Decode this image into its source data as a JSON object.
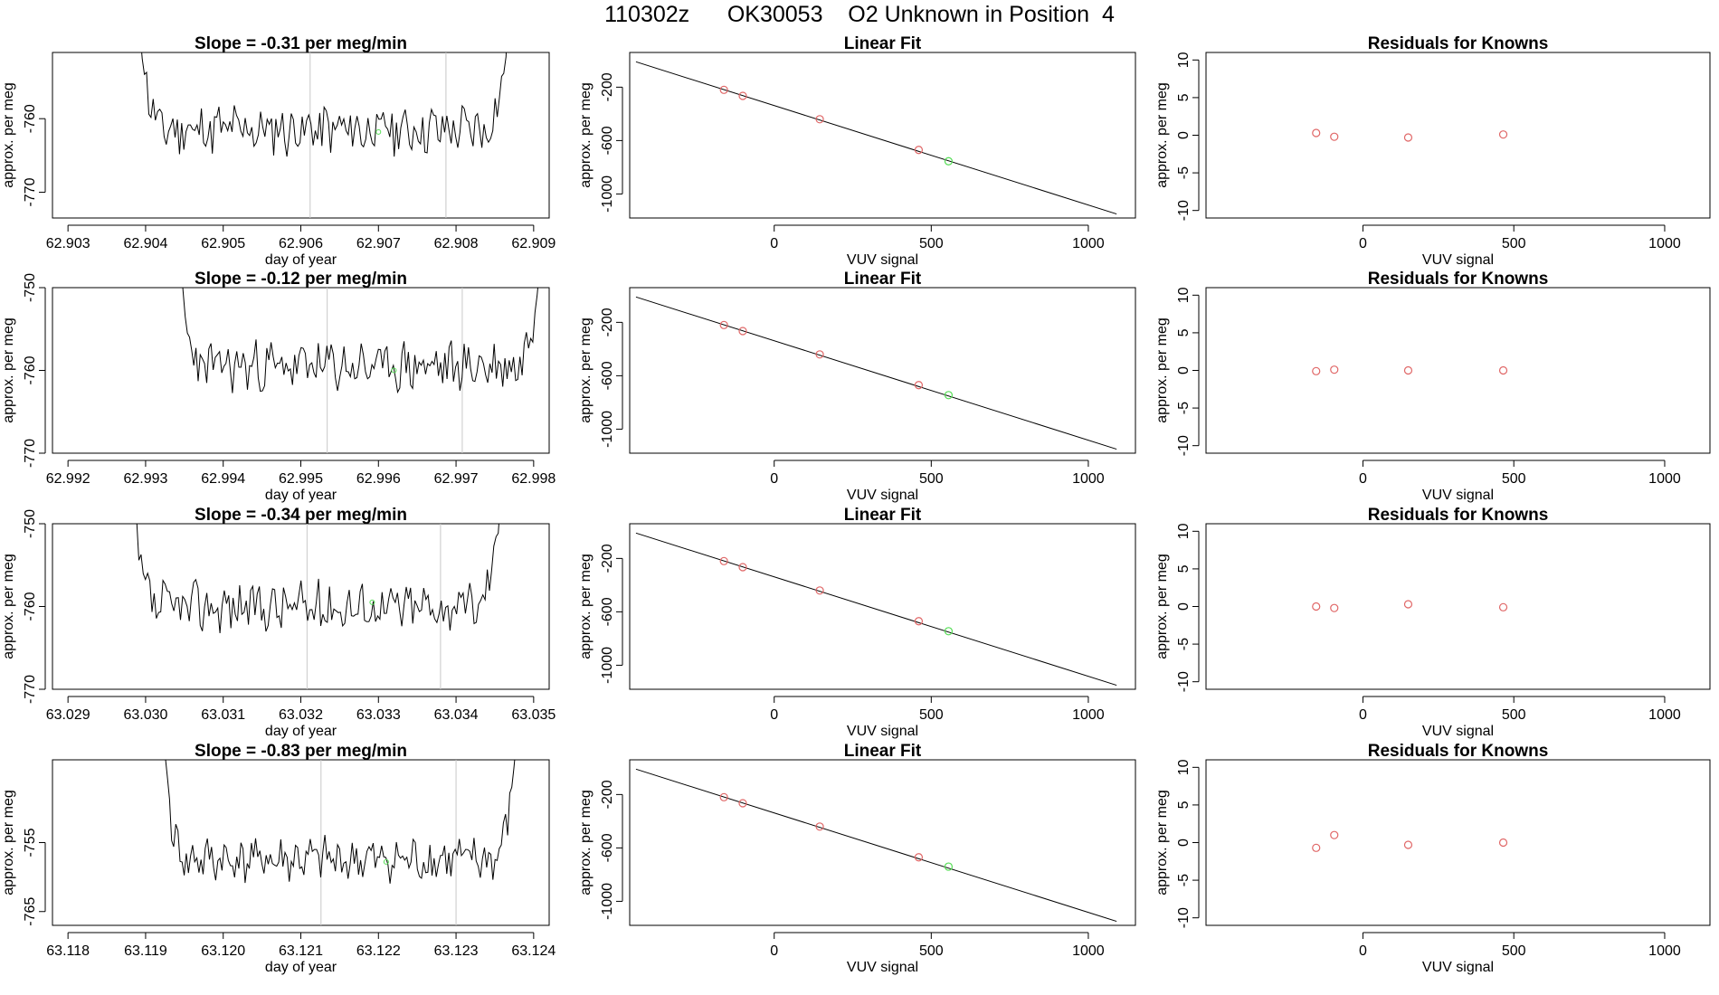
{
  "page": {
    "title": "110302z      OK30053    O2 Unknown in Position  4"
  },
  "common": {
    "xlabel_time": "day of year",
    "ylabel": "approx. per meg",
    "fit_title": "Linear Fit",
    "resid_title": "Residuals for Knowns",
    "xlabel_fit": "VUV signal",
    "colors": {
      "line": "#000000",
      "known": "#e06666",
      "unknown": "#55dd55",
      "vline": "#c8c8c8"
    }
  },
  "chart_data": [
    {
      "type": "line",
      "panel": "time",
      "row": 0,
      "title": "Slope =  -0.31  per meg/min",
      "xlabel": "day of year",
      "ylabel": "approx. per meg",
      "xlim": [
        62.9028,
        62.9092
      ],
      "ylim": [
        -773.5,
        -751
      ],
      "xticks": [
        62.903,
        62.904,
        62.905,
        62.906,
        62.907,
        62.908,
        62.909
      ],
      "xtick_labels": [
        "62.903",
        "62.904",
        "62.905",
        "62.906",
        "62.907",
        "62.908",
        "62.909"
      ],
      "yticks": [
        -760,
        -770
      ],
      "ytick_labels": [
        "-760",
        "-770"
      ],
      "series_range": [
        62.9039,
        62.9087
      ],
      "base": -761.5,
      "noise": 3.0,
      "seed": 11,
      "edge_top": -751,
      "vlines": [
        62.90612,
        62.90787
      ],
      "marker": {
        "x": 62.907,
        "y": -761.8
      }
    },
    {
      "type": "line",
      "panel": "time",
      "row": 1,
      "title": "Slope =  -0.12  per meg/min",
      "xlabel": "day of year",
      "ylabel": "approx. per meg",
      "xlim": [
        62.9918,
        62.9982
      ],
      "ylim": [
        -770,
        -750
      ],
      "xticks": [
        62.992,
        62.993,
        62.994,
        62.995,
        62.996,
        62.997,
        62.998
      ],
      "xtick_labels": [
        "62.992",
        "62.993",
        "62.994",
        "62.995",
        "62.996",
        "62.997",
        "62.998"
      ],
      "yticks": [
        -750,
        -760,
        -770
      ],
      "ytick_labels": [
        "-750",
        "-760",
        "-770"
      ],
      "series_range": [
        62.9934,
        62.9981
      ],
      "base": -759.5,
      "noise": 2.6,
      "seed": 23,
      "edge_top": -750,
      "vlines": [
        62.99534,
        62.99708
      ],
      "marker": {
        "x": 62.9962,
        "y": -760.0
      }
    },
    {
      "type": "line",
      "panel": "time",
      "row": 2,
      "title": "Slope =  -0.34  per meg/min",
      "xlabel": "day of year",
      "ylabel": "approx. per meg",
      "xlim": [
        63.0288,
        63.0352
      ],
      "ylim": [
        -770,
        -750
      ],
      "xticks": [
        63.029,
        63.03,
        63.031,
        63.032,
        63.033,
        63.034,
        63.035
      ],
      "xtick_labels": [
        "63.029",
        "63.030",
        "63.031",
        "63.032",
        "63.033",
        "63.034",
        "63.035"
      ],
      "yticks": [
        -750,
        -760,
        -770
      ],
      "ytick_labels": [
        "-750",
        "-760",
        "-770"
      ],
      "series_range": [
        63.0298,
        63.0346
      ],
      "base": -760.0,
      "noise": 2.6,
      "seed": 37,
      "edge_top": -750,
      "vlines": [
        63.03208,
        63.0338
      ],
      "marker": {
        "x": 63.03292,
        "y": -759.5
      }
    },
    {
      "type": "line",
      "panel": "time",
      "row": 3,
      "title": "Slope =  -0.83  per meg/min",
      "xlabel": "day of year",
      "ylabel": "approx. per meg",
      "xlim": [
        63.1178,
        63.1242
      ],
      "ylim": [
        -767,
        -743
      ],
      "xticks": [
        63.118,
        63.119,
        63.12,
        63.121,
        63.122,
        63.123,
        63.124
      ],
      "xtick_labels": [
        "63.118",
        "63.119",
        "63.120",
        "63.121",
        "63.122",
        "63.123",
        "63.124"
      ],
      "yticks": [
        -755,
        -765
      ],
      "ytick_labels": [
        "-755",
        "-765"
      ],
      "series_range": [
        63.1192,
        63.1238
      ],
      "base": -757.5,
      "noise": 2.8,
      "seed": 41,
      "edge_top": -743,
      "vlines": [
        63.12126,
        63.123
      ],
      "marker": {
        "x": 63.1221,
        "y": -757.8
      }
    },
    {
      "type": "scatter",
      "panel": "fit",
      "row": 0,
      "title": "Linear Fit",
      "xlabel": "VUV signal",
      "ylabel": "approx. per meg",
      "xlim": [
        -460,
        1150
      ],
      "ylim": [
        -1180,
        60
      ],
      "xticks": [
        0,
        500,
        1000
      ],
      "xtick_labels": [
        "0",
        "500",
        "1000"
      ],
      "yticks": [
        -200,
        -600,
        -1000
      ],
      "ytick_labels": [
        "-200",
        "-600",
        "-1000"
      ],
      "fit_line": {
        "x": [
          -440,
          1090
        ],
        "y": [
          -10,
          -1150
        ]
      },
      "known": {
        "x": [
          -160,
          -100,
          145,
          460
        ],
        "y": [
          -220,
          -265,
          -440,
          -670
        ]
      },
      "unknown": {
        "x": [
          555
        ],
        "y": [
          -755
        ]
      }
    },
    {
      "type": "scatter",
      "panel": "fit",
      "row": 1,
      "title": "Linear Fit",
      "xlabel": "VUV signal",
      "ylabel": "approx. per meg",
      "xlim": [
        -460,
        1150
      ],
      "ylim": [
        -1180,
        60
      ],
      "xticks": [
        0,
        500,
        1000
      ],
      "xtick_labels": [
        "0",
        "500",
        "1000"
      ],
      "yticks": [
        -200,
        -600,
        -1000
      ],
      "ytick_labels": [
        "-200",
        "-600",
        "-1000"
      ],
      "fit_line": {
        "x": [
          -440,
          1090
        ],
        "y": [
          -10,
          -1150
        ]
      },
      "known": {
        "x": [
          -160,
          -100,
          145,
          460
        ],
        "y": [
          -220,
          -265,
          -440,
          -670
        ]
      },
      "unknown": {
        "x": [
          555
        ],
        "y": [
          -745
        ]
      }
    },
    {
      "type": "scatter",
      "panel": "fit",
      "row": 2,
      "title": "Linear Fit",
      "xlabel": "VUV signal",
      "ylabel": "approx. per meg",
      "xlim": [
        -460,
        1150
      ],
      "ylim": [
        -1180,
        60
      ],
      "xticks": [
        0,
        500,
        1000
      ],
      "xtick_labels": [
        "0",
        "500",
        "1000"
      ],
      "yticks": [
        -200,
        -600,
        -1000
      ],
      "ytick_labels": [
        "-200",
        "-600",
        "-1000"
      ],
      "fit_line": {
        "x": [
          -440,
          1090
        ],
        "y": [
          -10,
          -1150
        ]
      },
      "known": {
        "x": [
          -160,
          -100,
          145,
          460
        ],
        "y": [
          -220,
          -265,
          -440,
          -670
        ]
      },
      "unknown": {
        "x": [
          555
        ],
        "y": [
          -745
        ]
      }
    },
    {
      "type": "scatter",
      "panel": "fit",
      "row": 3,
      "title": "Linear Fit",
      "xlabel": "VUV signal",
      "ylabel": "approx. per meg",
      "xlim": [
        -460,
        1150
      ],
      "ylim": [
        -1180,
        60
      ],
      "xticks": [
        0,
        500,
        1000
      ],
      "xtick_labels": [
        "0",
        "500",
        "1000"
      ],
      "yticks": [
        -200,
        -600,
        -1000
      ],
      "ytick_labels": [
        "-200",
        "-600",
        "-1000"
      ],
      "fit_line": {
        "x": [
          -440,
          1090
        ],
        "y": [
          -10,
          -1150
        ]
      },
      "known": {
        "x": [
          -160,
          -100,
          145,
          460
        ],
        "y": [
          -220,
          -265,
          -440,
          -670
        ]
      },
      "unknown": {
        "x": [
          555
        ],
        "y": [
          -740
        ]
      }
    },
    {
      "type": "scatter",
      "panel": "resid",
      "row": 0,
      "title": "Residuals for Knowns",
      "xlabel": "VUV signal",
      "ylabel": "approx. per meg",
      "xlim": [
        -520,
        1150
      ],
      "ylim": [
        -11,
        11
      ],
      "xticks": [
        0,
        500,
        1000
      ],
      "xtick_labels": [
        "0",
        "500",
        "1000"
      ],
      "yticks": [
        10,
        5,
        0,
        -5,
        -10
      ],
      "ytick_labels": [
        "10",
        "5",
        "0",
        "-5",
        "-10"
      ],
      "known": {
        "x": [
          -155,
          -95,
          150,
          465
        ],
        "y": [
          0.3,
          -0.2,
          -0.3,
          0.1
        ]
      }
    },
    {
      "type": "scatter",
      "panel": "resid",
      "row": 1,
      "title": "Residuals for Knowns",
      "xlabel": "VUV signal",
      "ylabel": "approx. per meg",
      "xlim": [
        -520,
        1150
      ],
      "ylim": [
        -11,
        11
      ],
      "xticks": [
        0,
        500,
        1000
      ],
      "xtick_labels": [
        "0",
        "500",
        "1000"
      ],
      "yticks": [
        10,
        5,
        0,
        -5,
        -10
      ],
      "ytick_labels": [
        "10",
        "5",
        "0",
        "-5",
        "-10"
      ],
      "known": {
        "x": [
          -155,
          -95,
          150,
          465
        ],
        "y": [
          -0.1,
          0.1,
          0.0,
          0.0
        ]
      }
    },
    {
      "type": "scatter",
      "panel": "resid",
      "row": 2,
      "title": "Residuals for Knowns",
      "xlabel": "VUV signal",
      "ylabel": "approx. per meg",
      "xlim": [
        -520,
        1150
      ],
      "ylim": [
        -11,
        11
      ],
      "xticks": [
        0,
        500,
        1000
      ],
      "xtick_labels": [
        "0",
        "500",
        "1000"
      ],
      "yticks": [
        10,
        5,
        0,
        -5,
        -10
      ],
      "ytick_labels": [
        "10",
        "5",
        "0",
        "-5",
        "-10"
      ],
      "known": {
        "x": [
          -155,
          -95,
          150,
          465
        ],
        "y": [
          0.0,
          -0.2,
          0.3,
          -0.1
        ]
      }
    },
    {
      "type": "scatter",
      "panel": "resid",
      "row": 3,
      "title": "Residuals for Knowns",
      "xlabel": "VUV signal",
      "ylabel": "approx. per meg",
      "xlim": [
        -520,
        1150
      ],
      "ylim": [
        -11,
        11
      ],
      "xticks": [
        0,
        500,
        1000
      ],
      "xtick_labels": [
        "0",
        "500",
        "1000"
      ],
      "yticks": [
        10,
        5,
        0,
        -5,
        -10
      ],
      "ytick_labels": [
        "10",
        "5",
        "0",
        "-5",
        "-10"
      ],
      "known": {
        "x": [
          -155,
          -95,
          150,
          465
        ],
        "y": [
          -0.7,
          1.0,
          -0.3,
          0.0
        ]
      }
    }
  ]
}
